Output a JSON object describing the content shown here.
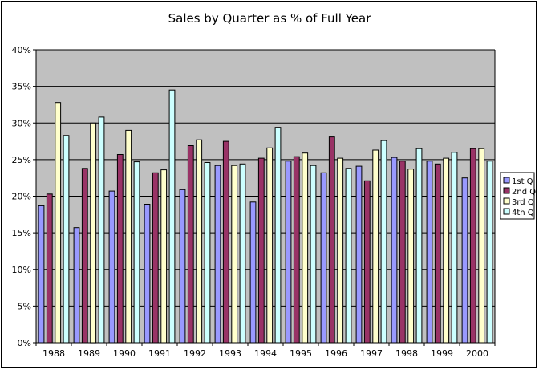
{
  "chart_data": {
    "type": "bar",
    "title": "Sales by Quarter as % of Full Year",
    "xlabel": "",
    "ylabel": "",
    "ylim": [
      0,
      40
    ],
    "y_ticks": [
      "0%",
      "5%",
      "10%",
      "15%",
      "20%",
      "25%",
      "30%",
      "35%",
      "40%"
    ],
    "grid": true,
    "legend_position": "right",
    "categories": [
      "1988",
      "1989",
      "1990",
      "1991",
      "1992",
      "1993",
      "1994",
      "1995",
      "1996",
      "1997",
      "1998",
      "1999",
      "2000"
    ],
    "series": [
      {
        "name": "1st Q",
        "color": "#9999ff",
        "values": [
          18.7,
          15.7,
          20.7,
          18.9,
          20.9,
          24.2,
          19.2,
          24.8,
          23.2,
          24.1,
          25.3,
          24.8,
          22.5
        ]
      },
      {
        "name": "2nd Q",
        "color": "#993366",
        "values": [
          20.3,
          23.8,
          25.7,
          23.2,
          26.9,
          27.5,
          25.2,
          25.4,
          28.1,
          22.1,
          24.8,
          24.4,
          26.5
        ]
      },
      {
        "name": "3rd Q",
        "color": "#ffffcc",
        "values": [
          32.8,
          30.0,
          29.0,
          23.6,
          27.7,
          24.2,
          26.6,
          25.9,
          25.2,
          26.3,
          23.7,
          25.2,
          26.5
        ]
      },
      {
        "name": "4th Q",
        "color": "#ccffff",
        "values": [
          28.3,
          30.8,
          24.7,
          34.5,
          24.6,
          24.4,
          29.4,
          24.2,
          23.8,
          27.6,
          26.5,
          26.0,
          24.8
        ]
      }
    ],
    "colors": {
      "plot_background": "#c0c0c0",
      "page_background": "#ffffff"
    }
  }
}
